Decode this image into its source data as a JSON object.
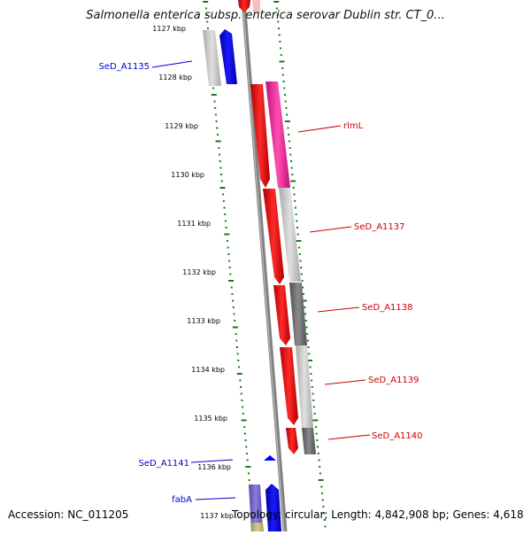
{
  "title": "Salmonella enterica subsp. enterica serovar Dublin str. CT_0...",
  "footer": {
    "accession": "Accession: NC_011205",
    "summary": "Topology: circular; Length: 4,842,908 bp; Genes: 4,618"
  },
  "ticks": [
    "1127 kbp",
    "1128 kbp",
    "1129 kbp",
    "1130 kbp",
    "1131 kbp",
    "1132 kbp",
    "1133 kbp",
    "1134 kbp",
    "1135 kbp",
    "1136 kbp",
    "1137 kbp"
  ],
  "genes": [
    {
      "name": "SeD_A1135",
      "color": "#0000cc"
    },
    {
      "name": "rlmL",
      "color": "#cc0000"
    },
    {
      "name": "SeD_A1137",
      "color": "#cc0000"
    },
    {
      "name": "SeD_A1138",
      "color": "#cc0000"
    },
    {
      "name": "SeD_A1139",
      "color": "#cc0000"
    },
    {
      "name": "SeD_A1140",
      "color": "#cc0000"
    },
    {
      "name": "SeD_A1141",
      "color": "#0000cc"
    },
    {
      "name": "fabA",
      "color": "#0000cc"
    }
  ],
  "colors": {
    "forward_strand": "#ff0000",
    "reverse_strand": "#0000ff",
    "gc_skew_tick": "#1a7a1a",
    "backbone": "#808080"
  }
}
